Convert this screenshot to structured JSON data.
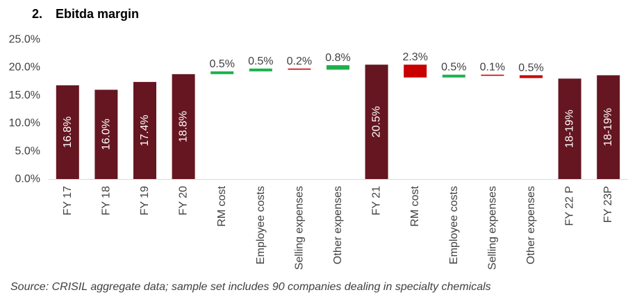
{
  "chart_data": {
    "type": "bar",
    "figure_number": "2.",
    "title": "Ebitda margin",
    "ylim": [
      0,
      25
    ],
    "yticks": [
      {
        "value": 0,
        "label": "0.0%"
      },
      {
        "value": 5,
        "label": "5.0%"
      },
      {
        "value": 10,
        "label": "10.0%"
      },
      {
        "value": 15,
        "label": "15.0%"
      },
      {
        "value": 20,
        "label": "20.0%"
      },
      {
        "value": 25,
        "label": "25.0%"
      }
    ],
    "grid": false,
    "legend": null,
    "bars": [
      {
        "category": "FY 17",
        "total": true,
        "value": 16.8,
        "label": "16.8%"
      },
      {
        "category": "FY 18",
        "total": true,
        "value": 16.0,
        "label": "16.0%"
      },
      {
        "category": "FY 19",
        "total": true,
        "value": 17.4,
        "label": "17.4%"
      },
      {
        "category": "FY 20",
        "total": true,
        "value": 18.8,
        "label": "18.8%"
      },
      {
        "category": "RM cost",
        "total": false,
        "value": 0.5,
        "label": "0.5%"
      },
      {
        "category": "Employee costs",
        "total": false,
        "value": 0.5,
        "label": "0.5%"
      },
      {
        "category": "Selling expenses",
        "total": false,
        "value": -0.2,
        "label": "0.2%"
      },
      {
        "category": "Other expenses",
        "total": false,
        "value": 0.8,
        "label": "0.8%"
      },
      {
        "category": "FY 21",
        "total": true,
        "value": 20.5,
        "label": "20.5%"
      },
      {
        "category": "RM cost",
        "total": false,
        "value": -2.3,
        "label": "2.3%"
      },
      {
        "category": "Employee costs",
        "total": false,
        "value": 0.5,
        "label": "0.5%"
      },
      {
        "category": "Selling expenses",
        "total": false,
        "value": -0.1,
        "label": "0.1%"
      },
      {
        "category": "Other expenses",
        "total": false,
        "value": -0.5,
        "label": "0.5%"
      },
      {
        "category": "FY 22 P",
        "total": true,
        "value": 18.0,
        "label": "18-19%"
      },
      {
        "category": "FY 23P",
        "total": true,
        "value": 18.6,
        "label": "18-19%"
      }
    ],
    "colors": {
      "total": "#651620",
      "increase": "#1EB04B",
      "decrease": "#C80000",
      "axis": "#D9D9D9"
    },
    "source": "Source: CRISIL aggregate data; sample set includes 90 companies dealing in specialty chemicals"
  }
}
